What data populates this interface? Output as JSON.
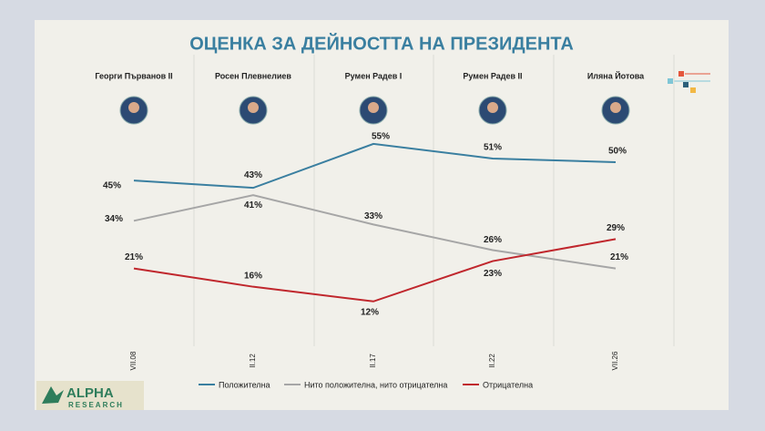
{
  "chart_data": {
    "type": "line",
    "title": "ОЦЕНКА ЗА ДЕЙНОСТТА НА ПРЕЗИДЕНТА",
    "presidents": [
      "Георги Първанов II",
      "Росен Плевнелиев",
      "Румен Радев I",
      "Румен Радев II",
      "Иляна Йотова"
    ],
    "categories": [
      "VII.08",
      "II.12",
      "II.17",
      "II.22",
      "VII.26"
    ],
    "series": [
      {
        "name": "Положителна",
        "color": "#3a7fa0",
        "values": [
          45,
          43,
          55,
          51,
          50
        ],
        "value_labels": [
          "45%",
          "43%",
          "55%",
          "51%",
          "50%"
        ]
      },
      {
        "name": "Нито положителна, нито отрицателна",
        "color": "#a6a6a6",
        "values": [
          34,
          41,
          33,
          26,
          21
        ],
        "value_labels": [
          "34%",
          "41%",
          "33%",
          "26%",
          "21%"
        ]
      },
      {
        "name": "Отрицателна",
        "color": "#c0272d",
        "values": [
          21,
          16,
          12,
          23,
          29
        ],
        "value_labels": [
          "21%",
          "16%",
          "12%",
          "23%",
          "29%"
        ]
      }
    ],
    "logo": "ALPHA",
    "logo_sub": "RESEARCH"
  }
}
